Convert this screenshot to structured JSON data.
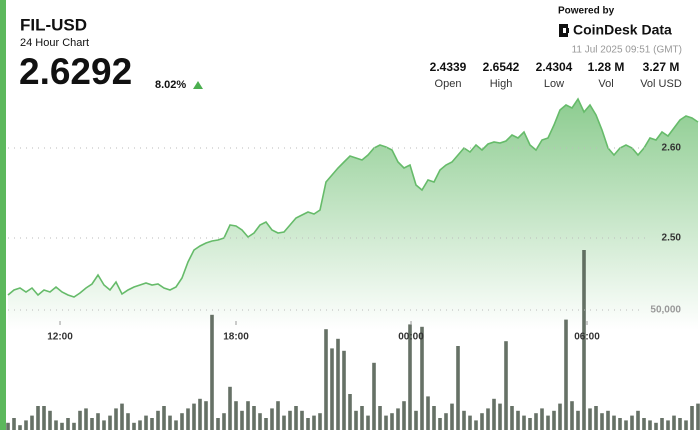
{
  "header": {
    "title": "FIL-USD",
    "subtitle": "24 Hour Chart",
    "price": "2.6292",
    "change": "8.02%",
    "powered_by": "Powered by",
    "brand": "CoinDesk Data",
    "timestamp": "11 Jul 2025 09:51 (GMT)",
    "stats": [
      {
        "value": "2.4339",
        "label": "Open"
      },
      {
        "value": "2.6542",
        "label": "High"
      },
      {
        "value": "2.4304",
        "label": "Low"
      },
      {
        "value": "1.28 M",
        "label": "Vol"
      },
      {
        "value": "3.27 M",
        "label": "Vol USD"
      }
    ]
  },
  "chart_data": {
    "type": "line",
    "xlim": [
      0,
      115
    ],
    "xticks": [
      {
        "value": 8.67,
        "label": "12:00"
      },
      {
        "value": 38,
        "label": "18:00"
      },
      {
        "value": 67.17,
        "label": "00:00"
      },
      {
        "value": 96.5,
        "label": "06:00"
      }
    ],
    "ylim": [
      2.4,
      2.7
    ],
    "yticks": [
      {
        "value": 2.5,
        "label": "2.50"
      },
      {
        "value": 2.6,
        "label": "2.60"
      }
    ],
    "y2lim": [
      0,
      100000
    ],
    "y2ticks": [
      {
        "value": 50000,
        "label": "50,000"
      }
    ],
    "grid": true,
    "series": [
      {
        "color": "#66bb6a",
        "values": [
          2.4367,
          2.4422,
          2.4444,
          2.44,
          2.4444,
          2.4367,
          2.4422,
          2.44,
          2.4456,
          2.44,
          2.4367,
          2.4344,
          2.4389,
          2.4444,
          2.4489,
          2.4589,
          2.4478,
          2.4422,
          2.4511,
          2.4378,
          2.4422,
          2.4456,
          2.4478,
          2.45,
          2.4478,
          2.4489,
          2.4444,
          2.4422,
          2.4456,
          2.4556,
          2.4733,
          2.4867,
          2.4911,
          2.4944,
          2.4967,
          2.4978,
          2.5,
          2.5144,
          2.5133,
          2.5089,
          2.5011,
          2.5056,
          2.5144,
          2.5178,
          2.5089,
          2.5056,
          2.5067,
          2.5144,
          2.5222,
          2.5256,
          2.5289,
          2.5267,
          2.5311,
          2.5622,
          2.57,
          2.5778,
          2.5844,
          2.5911,
          2.5889,
          2.5867,
          2.5922,
          2.6,
          2.6033,
          2.6011,
          2.5978,
          2.5844,
          2.5778,
          2.5811,
          2.5589,
          2.5533,
          2.5644,
          2.5622,
          2.5756,
          2.5811,
          2.5844,
          2.5922,
          2.6,
          2.5956,
          2.6033,
          2.5978,
          2.6044,
          2.6067,
          2.6056,
          2.6078,
          2.6144,
          2.6111,
          2.6178,
          2.6033,
          2.5978,
          2.6089,
          2.6111,
          2.6256,
          2.6422,
          2.6478,
          2.6444,
          2.6544,
          2.64,
          2.6478,
          2.6367,
          2.62,
          2.6,
          2.5922,
          2.6,
          2.6033,
          2.6,
          2.5922,
          2.6,
          2.6111,
          2.6089,
          2.6178,
          2.6133,
          2.6222,
          2.6311,
          2.6356,
          2.6333,
          2.6289
        ]
      },
      {
        "type": "bar",
        "axis": "y2",
        "color": "#4b584b",
        "values": [
          3000,
          5000,
          2000,
          4000,
          6000,
          10000,
          10000,
          8000,
          4000,
          3000,
          5000,
          3000,
          8000,
          9000,
          5000,
          7000,
          4000,
          6000,
          9000,
          11000,
          7000,
          3000,
          4000,
          6000,
          5000,
          8000,
          10000,
          6000,
          4000,
          7000,
          9000,
          11000,
          13000,
          12000,
          48000,
          5000,
          7000,
          18000,
          12000,
          8000,
          12000,
          10000,
          7000,
          5000,
          9000,
          12000,
          6000,
          8000,
          10000,
          8000,
          5000,
          6000,
          7000,
          42000,
          34000,
          38000,
          33000,
          15000,
          8000,
          10000,
          6000,
          28000,
          10000,
          6000,
          7000,
          9000,
          12000,
          44000,
          8000,
          43000,
          14000,
          10000,
          5000,
          7000,
          11000,
          35000,
          8000,
          6000,
          4000,
          7000,
          9000,
          13000,
          11000,
          37000,
          10000,
          8000,
          6000,
          5000,
          7000,
          9000,
          6000,
          8000,
          11000,
          46000,
          12000,
          8000,
          75000,
          9000,
          10000,
          7000,
          8000,
          6000,
          5000,
          4000,
          6000,
          8000,
          5000,
          4000,
          3000,
          5000,
          4000,
          6000,
          5000,
          4000,
          10000,
          11000
        ]
      }
    ]
  }
}
